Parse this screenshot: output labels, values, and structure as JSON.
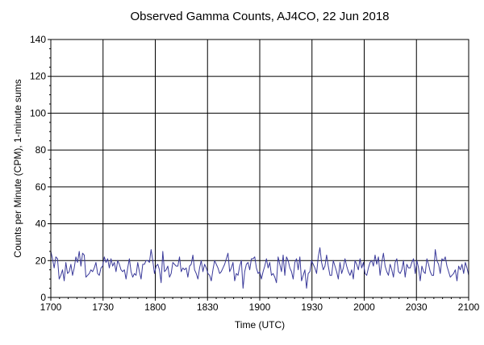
{
  "chart_data": {
    "type": "line",
    "title": "Observed Gamma Counts, AJ4CO, 22 Jun 2018",
    "xlabel": "Time (UTC)",
    "ylabel": "Counts per Minute (CPM), 1-minute sums",
    "x_range_minutes": [
      0,
      240
    ],
    "ylim": [
      0,
      140
    ],
    "x_ticks": [
      {
        "label": "1700",
        "minute": 0
      },
      {
        "label": "1730",
        "minute": 30
      },
      {
        "label": "1800",
        "minute": 60
      },
      {
        "label": "1830",
        "minute": 90
      },
      {
        "label": "1900",
        "minute": 120
      },
      {
        "label": "1930",
        "minute": 150
      },
      {
        "label": "2000",
        "minute": 180
      },
      {
        "label": "2030",
        "minute": 210
      },
      {
        "label": "2100",
        "minute": 240
      }
    ],
    "y_ticks": [
      "0",
      "20",
      "40",
      "60",
      "80",
      "100",
      "120",
      "140"
    ],
    "grid": true,
    "line_color": "#3a3a9a",
    "series": [
      {
        "name": "",
        "values": [
          25,
          21,
          16,
          22,
          21,
          10,
          12,
          15,
          9,
          19,
          13,
          14,
          18,
          12,
          16,
          22,
          19,
          25,
          17,
          24,
          23,
          11,
          12,
          13,
          15,
          14,
          16,
          19,
          13,
          12,
          16,
          17,
          22,
          19,
          21,
          16,
          21,
          17,
          19,
          14,
          20,
          18,
          15,
          14,
          15,
          10,
          16,
          21,
          14,
          11,
          13,
          12,
          19,
          14,
          10,
          18,
          18,
          20,
          20,
          19,
          26,
          20,
          13,
          17,
          18,
          15,
          8,
          25,
          14,
          15,
          17,
          11,
          13,
          19,
          18,
          17,
          17,
          22,
          14,
          16,
          15,
          16,
          11,
          17,
          18,
          23,
          15,
          13,
          10,
          16,
          20,
          14,
          18,
          16,
          13,
          12,
          9,
          15,
          20,
          18,
          16,
          13,
          14,
          16,
          18,
          21,
          24,
          14,
          16,
          19,
          9,
          13,
          12,
          17,
          20,
          5,
          14,
          18,
          19,
          15,
          21,
          21,
          22,
          16,
          13,
          14,
          10,
          14,
          17,
          21,
          16,
          19,
          12,
          13,
          11,
          8,
          22,
          18,
          14,
          23,
          12,
          22,
          20,
          16,
          14,
          10,
          19,
          21,
          15,
          22,
          9,
          12,
          15,
          5,
          13,
          14,
          20,
          18,
          16,
          13,
          22,
          27,
          19,
          15,
          17,
          23,
          17,
          12,
          12,
          20,
          17,
          14,
          10,
          19,
          13,
          16,
          21,
          17,
          14,
          12,
          15,
          10,
          20,
          18,
          15,
          21,
          16,
          19,
          13,
          12,
          16,
          19,
          20,
          17,
          23,
          18,
          22,
          12,
          19,
          24,
          17,
          14,
          12,
          18,
          15,
          11,
          19,
          21,
          14,
          13,
          15,
          20,
          11,
          18,
          16,
          16,
          19,
          21,
          13,
          20,
          16,
          9,
          17,
          14,
          13,
          21,
          18,
          14,
          12,
          12,
          26,
          20,
          18,
          13,
          21,
          20,
          22,
          17,
          14,
          11,
          12,
          13,
          15,
          9,
          17,
          15,
          18,
          13,
          19,
          16,
          12
        ]
      }
    ]
  }
}
